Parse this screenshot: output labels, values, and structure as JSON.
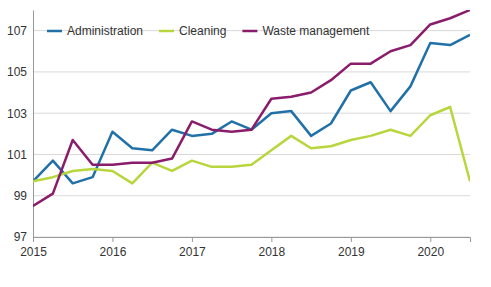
{
  "chart_data": {
    "type": "line",
    "categories": [
      "2015",
      null,
      null,
      null,
      "2016",
      null,
      null,
      null,
      "2017",
      null,
      null,
      null,
      "2018",
      null,
      null,
      null,
      "2019",
      null,
      null,
      null,
      "2020",
      null,
      null
    ],
    "series": [
      {
        "name": "Administration",
        "color": "#2171a8",
        "values": [
          99.7,
          100.7,
          99.6,
          99.9,
          102.1,
          101.3,
          101.2,
          102.2,
          101.9,
          102.0,
          102.6,
          102.2,
          103.0,
          103.1,
          101.9,
          102.5,
          104.1,
          104.5,
          103.1,
          104.3,
          106.4,
          106.3,
          106.8
        ]
      },
      {
        "name": "Cleaning",
        "color": "#b7d63c",
        "values": [
          99.7,
          99.9,
          100.2,
          100.3,
          100.2,
          99.6,
          100.6,
          100.2,
          100.7,
          100.4,
          100.4,
          100.5,
          101.2,
          101.9,
          101.3,
          101.4,
          101.7,
          101.9,
          102.2,
          101.9,
          102.9,
          103.3,
          99.7
        ]
      },
      {
        "name": "Waste management",
        "color": "#8a1c6c",
        "values": [
          98.5,
          99.1,
          101.7,
          100.5,
          100.5,
          100.6,
          100.6,
          100.8,
          102.6,
          102.2,
          102.1,
          102.2,
          103.7,
          103.8,
          104.0,
          104.6,
          105.4,
          105.4,
          106.0,
          106.3,
          107.3,
          107.6,
          108.0
        ]
      }
    ],
    "ylim": [
      97,
      108
    ],
    "yticks": [
      97,
      99,
      101,
      103,
      105,
      107
    ],
    "grid": true,
    "legend": "top"
  }
}
